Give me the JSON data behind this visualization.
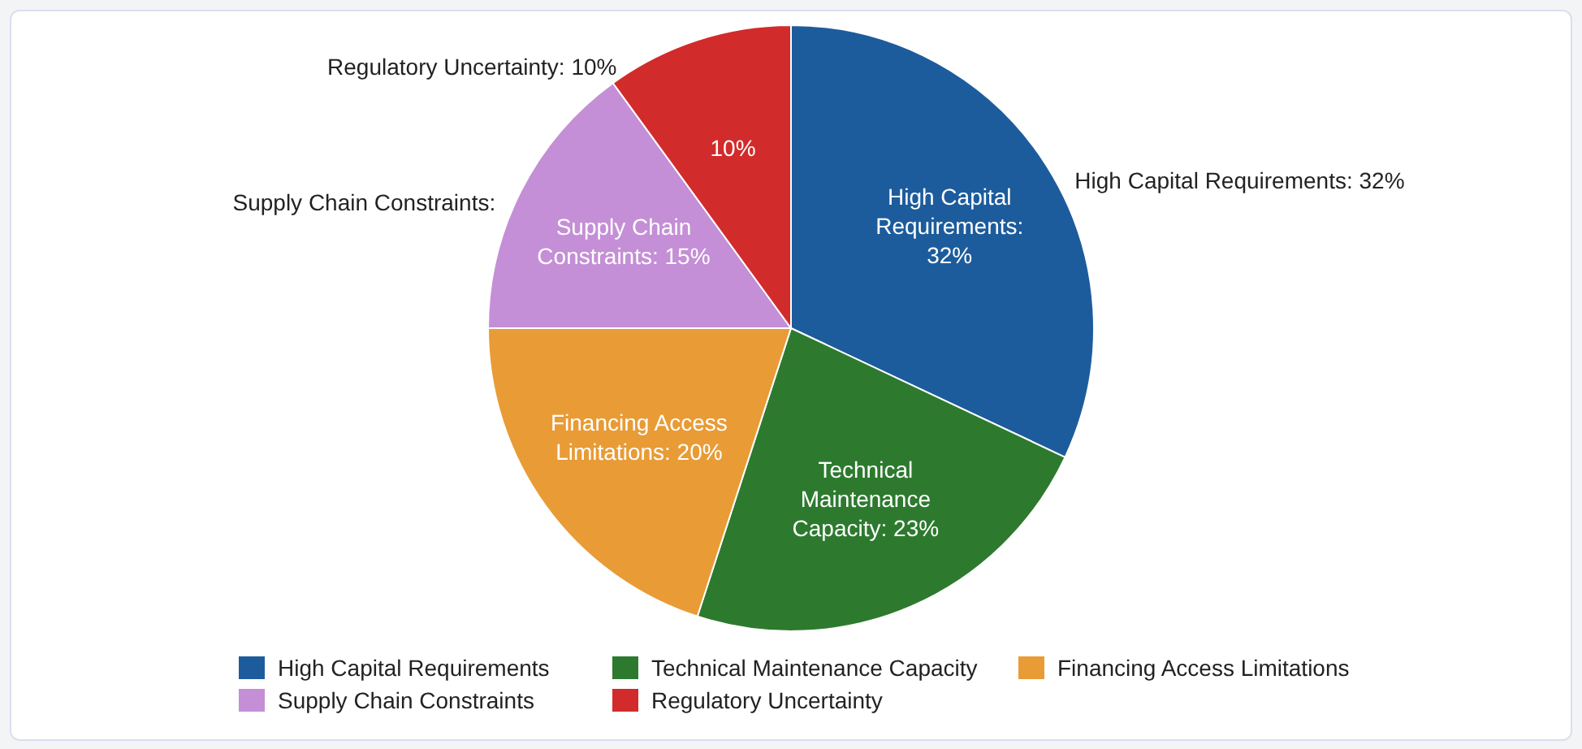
{
  "chart_data": {
    "type": "pie",
    "categories": [
      "High Capital Requirements",
      "Technical Maintenance Capacity",
      "Financing Access Limitations",
      "Supply Chain Constraints",
      "Regulatory Uncertainty"
    ],
    "values": [
      32,
      23,
      20,
      15,
      10
    ],
    "colors": [
      "#1d5c9c",
      "#2d7a2f",
      "#e99b36",
      "#c48fd6",
      "#d22b2b"
    ],
    "value_labels": [
      "High Capital Requirements: 32%",
      "Technical Maintenance Capacity: 23%",
      "Financing Access Limitations: 20%",
      "Supply Chain Constraints: 15%",
      "10%"
    ],
    "annotations": [
      {
        "text": "High Capital Requirements: 32%",
        "x": "High Capital Requirements"
      },
      {
        "text": "Supply Chain Constraints:",
        "x": "Supply Chain Constraints"
      },
      {
        "text": "Regulatory Uncertainty: 10%",
        "x": "Regulatory Uncertainty"
      }
    ],
    "legend": "bottom"
  }
}
